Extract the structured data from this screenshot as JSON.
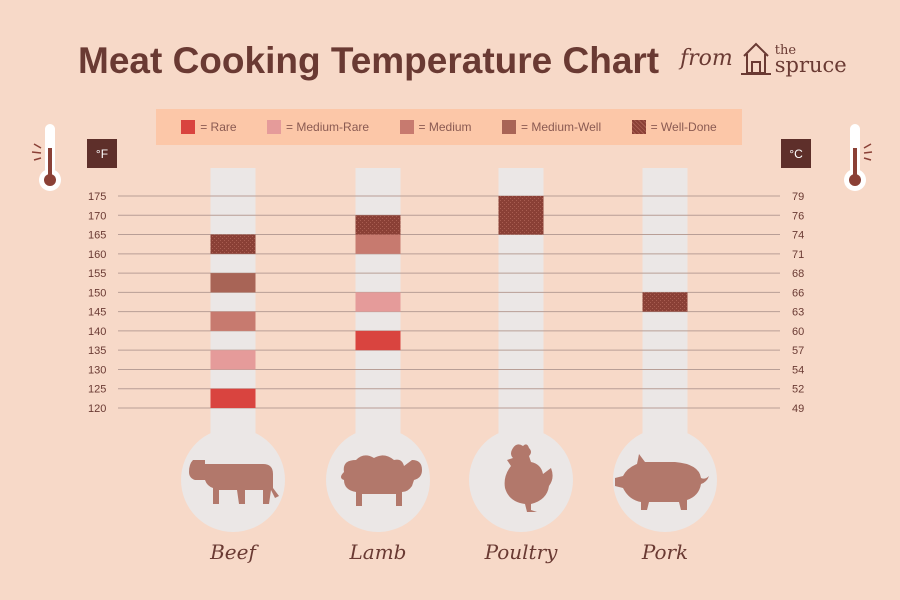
{
  "title": "Meat Cooking Temperature Chart",
  "brand": {
    "from": "from",
    "the": "the",
    "spruce": "spruce"
  },
  "units": {
    "fahrenheit": "°F",
    "celsius": "°C"
  },
  "legend": [
    {
      "label": "= Rare",
      "color": "#d9443f",
      "pattern": false
    },
    {
      "label": "= Medium-Rare",
      "color": "#e59b9a",
      "pattern": false
    },
    {
      "label": "= Medium",
      "color": "#c77a6f",
      "pattern": false
    },
    {
      "label": "= Medium-Well",
      "color": "#a86456",
      "pattern": false
    },
    {
      "label": "= Well-Done",
      "color": "#8a4036",
      "pattern": true
    }
  ],
  "colors": {
    "background": "#f7d9c8",
    "legend_bg": "#fcc7a8",
    "tube": "#ebe7e6",
    "grid_line": "#b89e96",
    "text": "#6a3a33",
    "animal": "#b2786b",
    "unit_box": "#5e2f2a"
  },
  "chart_data": {
    "type": "table",
    "title": "Meat Cooking Temperature Chart",
    "fahrenheit_ticks": [
      175,
      170,
      165,
      160,
      155,
      150,
      145,
      140,
      135,
      130,
      125,
      120
    ],
    "celsius_ticks": [
      79,
      76,
      74,
      71,
      68,
      66,
      63,
      60,
      57,
      54,
      52,
      49
    ],
    "ylim_f": [
      120,
      175
    ],
    "categories": [
      "Beef",
      "Lamb",
      "Poultry",
      "Pork"
    ],
    "series": [
      {
        "meat": "Beef",
        "icon": "cow-icon",
        "bands": [
          {
            "level": "Rare",
            "from_f": 120,
            "to_f": 125
          },
          {
            "level": "Medium-Rare",
            "from_f": 130,
            "to_f": 135
          },
          {
            "level": "Medium",
            "from_f": 140,
            "to_f": 145
          },
          {
            "level": "Medium-Well",
            "from_f": 150,
            "to_f": 155
          },
          {
            "level": "Well-Done",
            "from_f": 160,
            "to_f": 165
          }
        ]
      },
      {
        "meat": "Lamb",
        "icon": "sheep-icon",
        "bands": [
          {
            "level": "Rare",
            "from_f": 135,
            "to_f": 140
          },
          {
            "level": "Medium-Rare",
            "from_f": 145,
            "to_f": 150
          },
          {
            "level": "Medium",
            "from_f": 160,
            "to_f": 165
          },
          {
            "level": "Well-Done",
            "from_f": 165,
            "to_f": 170
          }
        ]
      },
      {
        "meat": "Poultry",
        "icon": "chicken-icon",
        "bands": [
          {
            "level": "Well-Done",
            "from_f": 165,
            "to_f": 175
          }
        ]
      },
      {
        "meat": "Pork",
        "icon": "pig-icon",
        "bands": [
          {
            "level": "Well-Done",
            "from_f": 145,
            "to_f": 150
          }
        ]
      }
    ]
  }
}
